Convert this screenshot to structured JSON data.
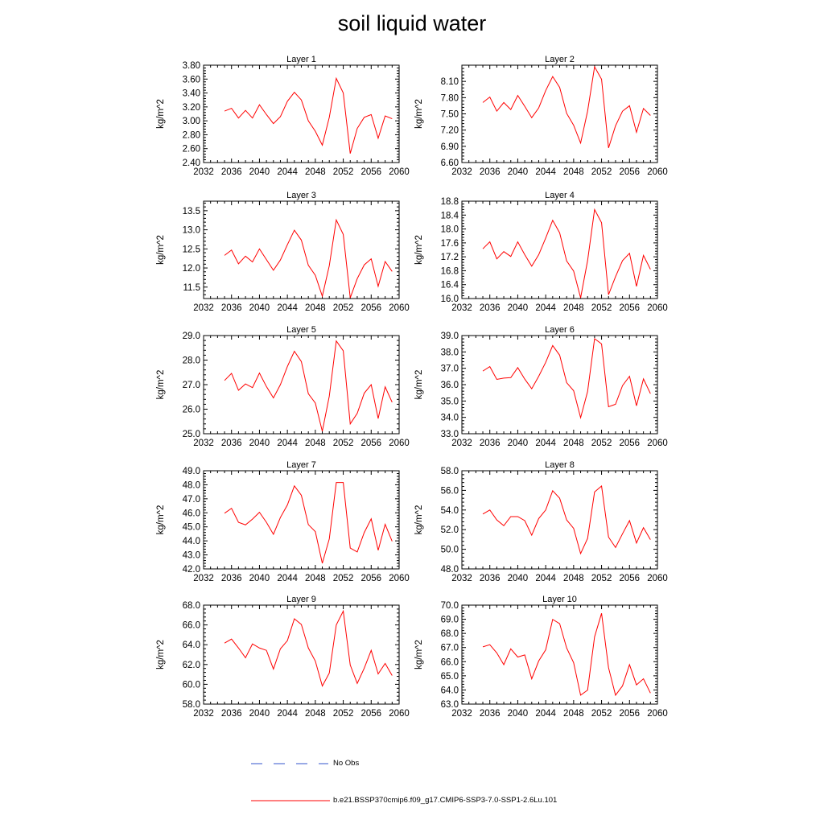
{
  "title": "soil liquid water",
  "legend": [
    {
      "label": "No Obs",
      "color": "#3355cc",
      "style": "dashed"
    },
    {
      "label": "b.e21.BSSP370cmip6.f09_g17.CMIP6-SSP3-7.0-SSP1-2.6Lu.101",
      "color": "#ff0000",
      "style": "solid"
    }
  ],
  "chart_data": [
    {
      "type": "line",
      "title": "Layer 1",
      "ylabel": "kg/m^2",
      "xlim": [
        2032,
        2060
      ],
      "xticks": [
        2032,
        2036,
        2040,
        2044,
        2048,
        2052,
        2056,
        2060
      ],
      "ylim": [
        2.4,
        3.8
      ],
      "yticks": [
        "2.40",
        "2.60",
        "2.80",
        "3.00",
        "3.20",
        "3.40",
        "3.60",
        "3.80"
      ],
      "x": [
        2035,
        2036,
        2037,
        2038,
        2039,
        2040,
        2041,
        2042,
        2043,
        2044,
        2045,
        2046,
        2047,
        2048,
        2049,
        2050,
        2051,
        2052,
        2053,
        2054,
        2055,
        2056,
        2057,
        2058,
        2059
      ],
      "series": [
        {
          "values": [
            3.14,
            3.18,
            3.04,
            3.15,
            3.04,
            3.23,
            3.09,
            2.96,
            3.06,
            3.28,
            3.41,
            3.3,
            3.0,
            2.85,
            2.65,
            3.05,
            3.61,
            3.4,
            2.53,
            2.89,
            3.05,
            3.09,
            2.75,
            3.07,
            3.03
          ],
          "color": "#ff0000"
        }
      ]
    },
    {
      "type": "line",
      "title": "Layer 2",
      "ylabel": "kg/m^2",
      "xlim": [
        2032,
        2060
      ],
      "xticks": [
        2032,
        2036,
        2040,
        2044,
        2048,
        2052,
        2056,
        2060
      ],
      "ylim": [
        6.6,
        8.4
      ],
      "yticks": [
        "6.60",
        "6.90",
        "7.20",
        "7.50",
        "7.80",
        "8.10"
      ],
      "x": [
        2035,
        2036,
        2037,
        2038,
        2039,
        2040,
        2041,
        2042,
        2043,
        2044,
        2045,
        2046,
        2047,
        2048,
        2049,
        2050,
        2051,
        2052,
        2053,
        2054,
        2055,
        2056,
        2057,
        2058,
        2059
      ],
      "series": [
        {
          "values": [
            7.71,
            7.81,
            7.55,
            7.71,
            7.58,
            7.84,
            7.64,
            7.43,
            7.61,
            7.93,
            8.19,
            7.99,
            7.51,
            7.29,
            6.96,
            7.55,
            8.37,
            8.14,
            6.87,
            7.28,
            7.55,
            7.65,
            7.16,
            7.6,
            7.47
          ],
          "color": "#ff0000"
        }
      ]
    },
    {
      "type": "line",
      "title": "Layer 3",
      "ylabel": "kg/m^2",
      "xlim": [
        2032,
        2060
      ],
      "xticks": [
        2032,
        2036,
        2040,
        2044,
        2048,
        2052,
        2056,
        2060
      ],
      "ylim": [
        11.2,
        13.75
      ],
      "yticks": [
        "11.5",
        "12.0",
        "12.5",
        "13.0",
        "13.5"
      ],
      "x": [
        2035,
        2036,
        2037,
        2038,
        2039,
        2040,
        2041,
        2042,
        2043,
        2044,
        2045,
        2046,
        2047,
        2048,
        2049,
        2050,
        2051,
        2052,
        2053,
        2054,
        2055,
        2056,
        2057,
        2058,
        2059
      ],
      "series": [
        {
          "values": [
            12.33,
            12.47,
            12.11,
            12.31,
            12.16,
            12.5,
            12.22,
            11.94,
            12.21,
            12.61,
            12.99,
            12.73,
            12.07,
            11.81,
            11.26,
            12.06,
            13.26,
            12.88,
            11.22,
            11.72,
            12.08,
            12.24,
            11.52,
            12.17,
            11.91
          ],
          "color": "#ff0000"
        }
      ]
    },
    {
      "type": "line",
      "title": "Layer 4",
      "ylabel": "kg/m^2",
      "xlim": [
        2032,
        2060
      ],
      "xticks": [
        2032,
        2036,
        2040,
        2044,
        2048,
        2052,
        2056,
        2060
      ],
      "ylim": [
        16.0,
        18.8
      ],
      "yticks": [
        "16.0",
        "16.4",
        "16.8",
        "17.2",
        "17.6",
        "18.0",
        "18.4",
        "18.8"
      ],
      "x": [
        2035,
        2036,
        2037,
        2038,
        2039,
        2040,
        2041,
        2042,
        2043,
        2044,
        2045,
        2046,
        2047,
        2048,
        2049,
        2050,
        2051,
        2052,
        2053,
        2054,
        2055,
        2056,
        2057,
        2058,
        2059
      ],
      "series": [
        {
          "values": [
            17.43,
            17.63,
            17.14,
            17.35,
            17.21,
            17.63,
            17.26,
            16.93,
            17.26,
            17.74,
            18.25,
            17.89,
            17.08,
            16.79,
            16.02,
            17.09,
            18.56,
            18.18,
            16.11,
            16.63,
            17.09,
            17.3,
            16.35,
            17.24,
            16.84
          ],
          "color": "#ff0000"
        }
      ]
    },
    {
      "type": "line",
      "title": "Layer 5",
      "ylabel": "kg/m^2",
      "xlim": [
        2032,
        2060
      ],
      "xticks": [
        2032,
        2036,
        2040,
        2044,
        2048,
        2052,
        2056,
        2060
      ],
      "ylim": [
        25.0,
        29.0
      ],
      "yticks": [
        "25.0",
        "26.0",
        "27.0",
        "28.0",
        "29.0"
      ],
      "x": [
        2035,
        2036,
        2037,
        2038,
        2039,
        2040,
        2041,
        2042,
        2043,
        2044,
        2045,
        2046,
        2047,
        2048,
        2049,
        2050,
        2051,
        2052,
        2053,
        2054,
        2055,
        2056,
        2057,
        2058,
        2059
      ],
      "series": [
        {
          "values": [
            27.17,
            27.46,
            26.77,
            27.03,
            26.88,
            27.47,
            26.92,
            26.46,
            27.0,
            27.74,
            28.36,
            27.94,
            26.63,
            26.25,
            25.1,
            26.53,
            28.78,
            28.38,
            25.4,
            25.83,
            26.65,
            27.0,
            25.62,
            26.91,
            26.28
          ],
          "color": "#ff0000"
        }
      ]
    },
    {
      "type": "line",
      "title": "Layer 6",
      "ylabel": "kg/m^2",
      "xlim": [
        2032,
        2060
      ],
      "xticks": [
        2032,
        2036,
        2040,
        2044,
        2048,
        2052,
        2056,
        2060
      ],
      "ylim": [
        33.0,
        39.0
      ],
      "yticks": [
        "33.0",
        "34.0",
        "35.0",
        "36.0",
        "37.0",
        "38.0",
        "39.0"
      ],
      "x": [
        2035,
        2036,
        2037,
        2038,
        2039,
        2040,
        2041,
        2042,
        2043,
        2044,
        2045,
        2046,
        2047,
        2048,
        2049,
        2050,
        2051,
        2052,
        2053,
        2054,
        2055,
        2056,
        2057,
        2058,
        2059
      ],
      "series": [
        {
          "values": [
            36.83,
            37.1,
            36.32,
            36.4,
            36.43,
            37.04,
            36.34,
            35.75,
            36.51,
            37.36,
            38.39,
            37.8,
            36.12,
            35.63,
            33.98,
            35.58,
            38.81,
            38.49,
            34.65,
            34.8,
            35.94,
            36.51,
            34.71,
            36.35,
            35.45
          ],
          "color": "#ff0000"
        }
      ]
    },
    {
      "type": "line",
      "title": "Layer 7",
      "ylabel": "kg/m^2",
      "xlim": [
        2032,
        2060
      ],
      "xticks": [
        2032,
        2036,
        2040,
        2044,
        2048,
        2052,
        2056,
        2060
      ],
      "ylim": [
        42.0,
        49.0
      ],
      "yticks": [
        "42.0",
        "43.0",
        "44.0",
        "45.0",
        "46.0",
        "47.0",
        "48.0",
        "49.0"
      ],
      "x": [
        2035,
        2036,
        2037,
        2038,
        2039,
        2040,
        2041,
        2042,
        2043,
        2044,
        2045,
        2046,
        2047,
        2048,
        2049,
        2050,
        2051,
        2052,
        2053,
        2054,
        2055,
        2056,
        2057,
        2058,
        2059
      ],
      "series": [
        {
          "values": [
            45.97,
            46.32,
            45.32,
            45.14,
            45.55,
            46.04,
            45.32,
            44.47,
            45.67,
            46.56,
            47.92,
            47.25,
            45.16,
            44.66,
            42.4,
            44.14,
            48.16,
            48.16,
            43.49,
            43.21,
            44.59,
            45.57,
            43.33,
            45.18,
            43.97
          ],
          "color": "#ff0000"
        }
      ]
    },
    {
      "type": "line",
      "title": "Layer 8",
      "ylabel": "kg/m^2",
      "xlim": [
        2032,
        2060
      ],
      "xticks": [
        2032,
        2036,
        2040,
        2044,
        2048,
        2052,
        2056,
        2060
      ],
      "ylim": [
        48.0,
        58.0
      ],
      "yticks": [
        "48.0",
        "50.0",
        "52.0",
        "54.0",
        "56.0",
        "58.0"
      ],
      "x": [
        2035,
        2036,
        2037,
        2038,
        2039,
        2040,
        2041,
        2042,
        2043,
        2044,
        2045,
        2046,
        2047,
        2048,
        2049,
        2050,
        2051,
        2052,
        2053,
        2054,
        2055,
        2056,
        2057,
        2058,
        2059
      ],
      "series": [
        {
          "values": [
            53.59,
            54.0,
            52.99,
            52.4,
            53.33,
            53.33,
            52.92,
            51.44,
            53.13,
            54.0,
            55.97,
            55.2,
            52.99,
            52.13,
            49.56,
            51.11,
            55.84,
            56.44,
            51.24,
            50.18,
            51.58,
            52.92,
            50.64,
            52.2,
            50.98
          ],
          "color": "#ff0000"
        }
      ]
    },
    {
      "type": "line",
      "title": "Layer 9",
      "ylabel": "kg/m^2",
      "xlim": [
        2032,
        2060
      ],
      "xticks": [
        2032,
        2036,
        2040,
        2044,
        2048,
        2052,
        2056,
        2060
      ],
      "ylim": [
        58.0,
        68.0
      ],
      "yticks": [
        "58.0",
        "60.0",
        "62.0",
        "64.0",
        "66.0",
        "68.0"
      ],
      "x": [
        2035,
        2036,
        2037,
        2038,
        2039,
        2040,
        2041,
        2042,
        2043,
        2044,
        2045,
        2046,
        2047,
        2048,
        2049,
        2050,
        2051,
        2052,
        2053,
        2054,
        2055,
        2056,
        2057,
        2058,
        2059
      ],
      "series": [
        {
          "values": [
            64.16,
            64.57,
            63.67,
            62.68,
            64.08,
            63.67,
            63.43,
            61.54,
            63.59,
            64.41,
            66.62,
            66.05,
            63.67,
            62.35,
            59.83,
            61.13,
            66.0,
            67.4,
            61.95,
            60.09,
            61.62,
            63.43,
            61.05,
            62.11,
            60.89
          ],
          "color": "#ff0000"
        }
      ]
    },
    {
      "type": "line",
      "title": "Layer 10",
      "ylabel": "kg/m^2",
      "xlim": [
        2032,
        2060
      ],
      "xticks": [
        2032,
        2036,
        2040,
        2044,
        2048,
        2052,
        2056,
        2060
      ],
      "ylim": [
        63.0,
        70.0
      ],
      "yticks": [
        "63.0",
        "64.0",
        "65.0",
        "66.0",
        "67.0",
        "68.0",
        "69.0",
        "70.0"
      ],
      "x": [
        2035,
        2036,
        2037,
        2038,
        2039,
        2040,
        2041,
        2042,
        2043,
        2044,
        2045,
        2046,
        2047,
        2048,
        2049,
        2050,
        2051,
        2052,
        2053,
        2054,
        2055,
        2056,
        2057,
        2058,
        2059
      ],
      "series": [
        {
          "values": [
            67.05,
            67.2,
            66.62,
            65.79,
            66.91,
            66.33,
            66.48,
            64.79,
            66.05,
            66.84,
            68.99,
            68.69,
            66.97,
            65.93,
            63.63,
            63.99,
            67.76,
            69.42,
            65.57,
            63.63,
            64.29,
            65.79,
            64.36,
            64.79,
            63.78
          ],
          "color": "#ff0000"
        }
      ]
    }
  ]
}
